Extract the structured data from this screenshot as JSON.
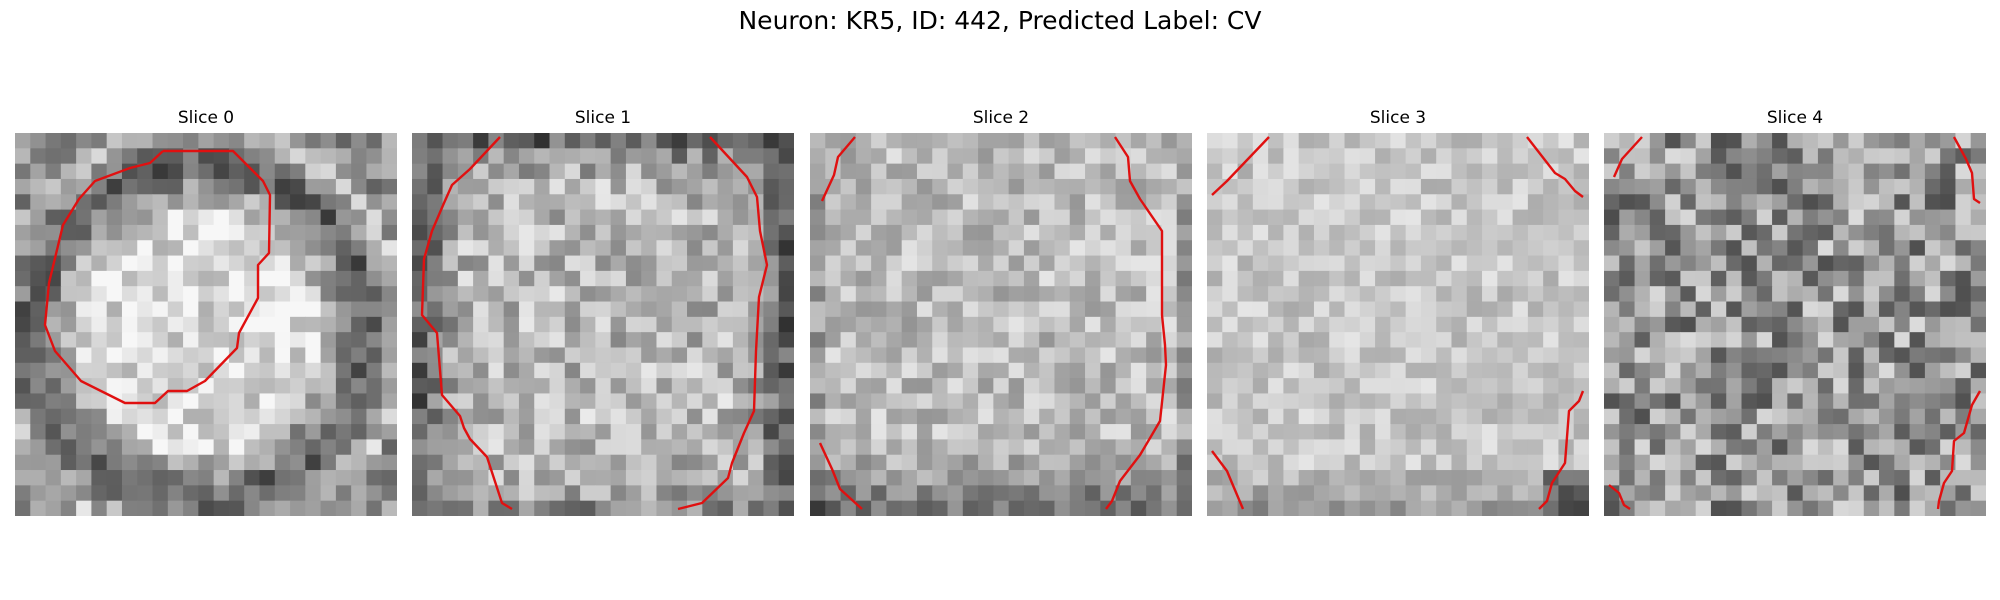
{
  "figure": {
    "title": "Neuron: KR5, ID: 442, Predicted Label: CV"
  },
  "colors": {
    "contour": "#e01010"
  },
  "panels": [
    {
      "label": "Slice 0",
      "pattern": "ring",
      "contour_shape": "closed-octagon"
    },
    {
      "label": "Slice 1",
      "pattern": "ring-wide",
      "contour_shape": "open-ring"
    },
    {
      "label": "Slice 2",
      "pattern": "bright-mid",
      "contour_shape": "edge-arcs"
    },
    {
      "label": "Slice 3",
      "pattern": "bright-soft",
      "contour_shape": "corner-segments"
    },
    {
      "label": "Slice 4",
      "pattern": "noise",
      "contour_shape": "corner-segments-small"
    }
  ]
}
